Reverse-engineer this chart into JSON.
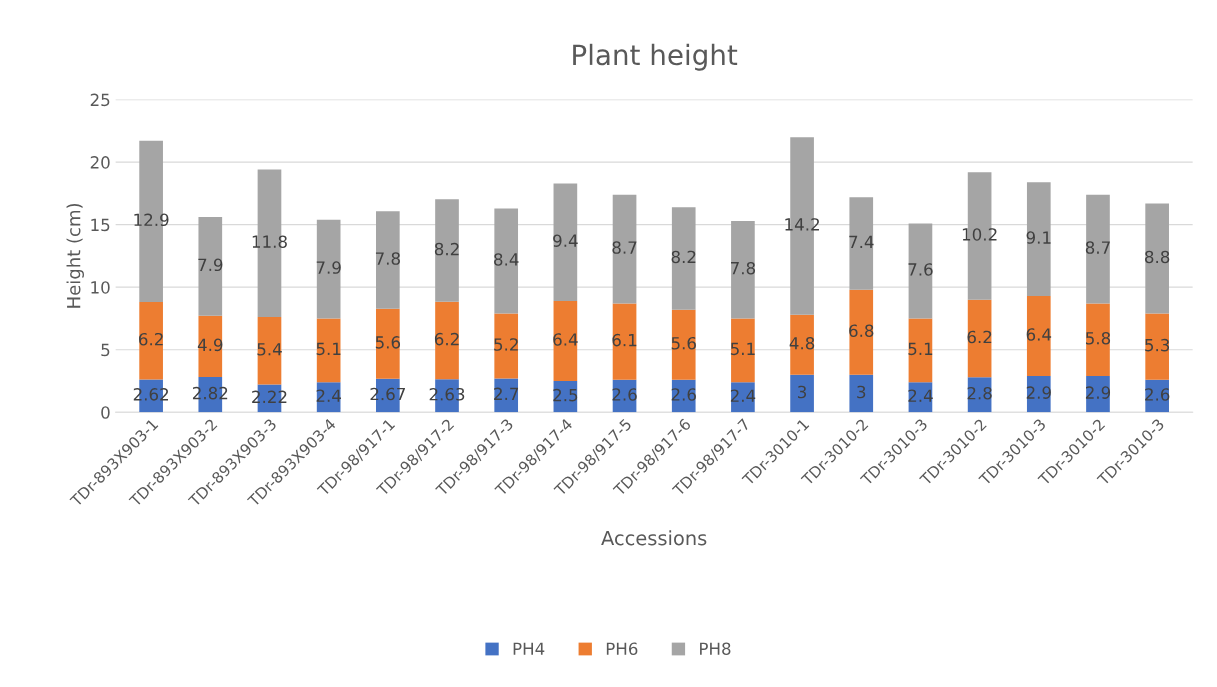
{
  "chart_data": {
    "type": "bar",
    "stacked": true,
    "title": "Plant height",
    "xlabel": "Accessions",
    "ylabel": "Height (cm)",
    "categories": [
      "TDr-893X903-1",
      "TDr-893X903-2",
      "TDr-893X903-3",
      "TDr-893X903-4",
      "TDr-98/917-1",
      "TDr-98/917-2",
      "TDr-98/917-3",
      "TDr-98/917-4",
      "TDr-98/917-5",
      "TDr-98/917-6",
      "TDr-98/917-7",
      "TDr-3010-1",
      "TDr-3010-2",
      "TDr-3010-3",
      "TDr-3010-2",
      "TDr-3010-3",
      "TDr-3010-2",
      "TDr-3010-3"
    ],
    "series": [
      {
        "name": "PH4",
        "color": "#4472c4",
        "values": [
          2.62,
          2.82,
          2.22,
          2.4,
          2.67,
          2.63,
          2.7,
          2.5,
          2.6,
          2.6,
          2.4,
          3,
          3,
          2.4,
          2.8,
          2.9,
          2.9,
          2.6
        ]
      },
      {
        "name": "PH6",
        "color": "#ed7d31",
        "values": [
          6.2,
          4.9,
          5.4,
          5.1,
          5.6,
          6.2,
          5.2,
          6.4,
          6.1,
          5.6,
          5.1,
          4.8,
          6.8,
          5.1,
          6.2,
          6.4,
          5.8,
          5.3
        ]
      },
      {
        "name": "PH8",
        "color": "#a5a5a5",
        "values": [
          12.9,
          7.9,
          11.8,
          7.9,
          7.8,
          8.2,
          8.4,
          9.4,
          8.7,
          8.2,
          7.8,
          14.2,
          7.4,
          7.6,
          10.2,
          9.1,
          8.7,
          8.8
        ]
      }
    ],
    "ylim": [
      0,
      25
    ],
    "yticks": [
      0,
      5,
      10,
      15,
      20,
      25
    ],
    "grid": "y",
    "legend": "bottom",
    "data_labels": true
  }
}
